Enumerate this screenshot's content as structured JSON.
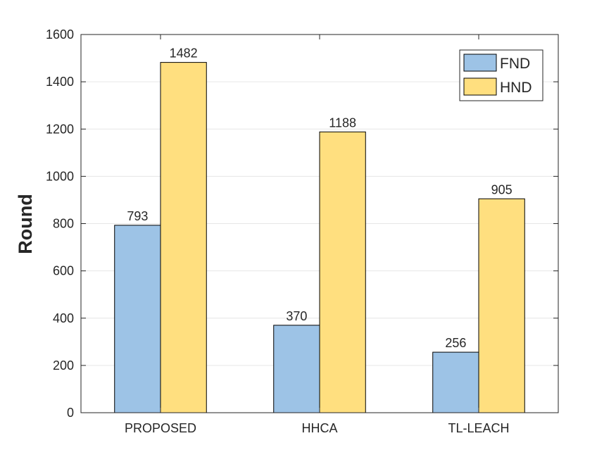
{
  "chart_data": {
    "type": "bar",
    "title": "",
    "xlabel": "",
    "ylabel": "Round",
    "categories": [
      "PROPOSED",
      "HHCA",
      "TL-LEACH"
    ],
    "series": [
      {
        "name": "FND",
        "values": [
          793,
          370,
          256
        ],
        "color": "#9DC3E6"
      },
      {
        "name": "HND",
        "values": [
          1482,
          1188,
          905
        ],
        "color": "#FFDF7F"
      }
    ],
    "ylim": [
      0,
      1600
    ],
    "yticks": [
      0,
      200,
      400,
      600,
      800,
      1000,
      1200,
      1400,
      1600
    ],
    "grid": true,
    "legend_position": "top-right",
    "data_labels": true
  }
}
